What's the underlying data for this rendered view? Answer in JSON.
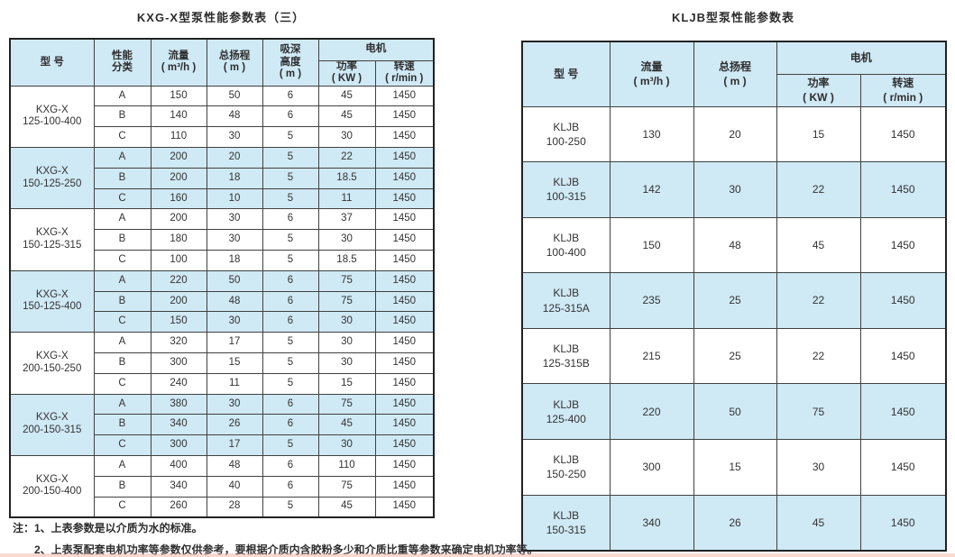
{
  "colors": {
    "header_bg": "#cfe9f5",
    "alt_row_bg": "#cfe9f5",
    "border": "#414141",
    "text": "#333333"
  },
  "left_table": {
    "title": "KXG-X型泵性能参数表（三）",
    "header": {
      "model": [
        "型  号"
      ],
      "perf_class": [
        "性能",
        "分类"
      ],
      "flow": [
        "流量",
        "( m³/h )"
      ],
      "head": [
        "总扬程",
        "( m )"
      ],
      "suction": [
        "吸深",
        "高度",
        "( m )"
      ],
      "motor": [
        "电机"
      ],
      "power": [
        "功率",
        "( KW )"
      ],
      "speed": [
        "转速",
        "( r/min )"
      ]
    },
    "groups": [
      {
        "model": [
          "KXG-X",
          "125-100-400"
        ],
        "rows": [
          {
            "class": "A",
            "flow": "150",
            "head": "50",
            "suction": "6",
            "power": "45",
            "speed": "1450"
          },
          {
            "class": "B",
            "flow": "140",
            "head": "48",
            "suction": "6",
            "power": "45",
            "speed": "1450"
          },
          {
            "class": "C",
            "flow": "110",
            "head": "30",
            "suction": "5",
            "power": "30",
            "speed": "1450"
          }
        ]
      },
      {
        "model": [
          "KXG-X",
          "150-125-250"
        ],
        "rows": [
          {
            "class": "A",
            "flow": "200",
            "head": "20",
            "suction": "5",
            "power": "22",
            "speed": "1450"
          },
          {
            "class": "B",
            "flow": "200",
            "head": "18",
            "suction": "5",
            "power": "18.5",
            "speed": "1450"
          },
          {
            "class": "C",
            "flow": "160",
            "head": "10",
            "suction": "5",
            "power": "11",
            "speed": "1450"
          }
        ]
      },
      {
        "model": [
          "KXG-X",
          "150-125-315"
        ],
        "rows": [
          {
            "class": "A",
            "flow": "200",
            "head": "30",
            "suction": "6",
            "power": "37",
            "speed": "1450"
          },
          {
            "class": "B",
            "flow": "180",
            "head": "30",
            "suction": "5",
            "power": "30",
            "speed": "1450"
          },
          {
            "class": "C",
            "flow": "100",
            "head": "18",
            "suction": "5",
            "power": "18.5",
            "speed": "1450"
          }
        ]
      },
      {
        "model": [
          "KXG-X",
          "150-125-400"
        ],
        "rows": [
          {
            "class": "A",
            "flow": "220",
            "head": "50",
            "suction": "6",
            "power": "75",
            "speed": "1450"
          },
          {
            "class": "B",
            "flow": "200",
            "head": "48",
            "suction": "6",
            "power": "75",
            "speed": "1450"
          },
          {
            "class": "C",
            "flow": "150",
            "head": "30",
            "suction": "6",
            "power": "30",
            "speed": "1450"
          }
        ]
      },
      {
        "model": [
          "KXG-X",
          "200-150-250"
        ],
        "rows": [
          {
            "class": "A",
            "flow": "320",
            "head": "17",
            "suction": "5",
            "power": "30",
            "speed": "1450"
          },
          {
            "class": "B",
            "flow": "300",
            "head": "15",
            "suction": "5",
            "power": "30",
            "speed": "1450"
          },
          {
            "class": "C",
            "flow": "240",
            "head": "11",
            "suction": "5",
            "power": "15",
            "speed": "1450"
          }
        ]
      },
      {
        "model": [
          "KXG-X",
          "200-150-315"
        ],
        "rows": [
          {
            "class": "A",
            "flow": "380",
            "head": "30",
            "suction": "6",
            "power": "75",
            "speed": "1450"
          },
          {
            "class": "B",
            "flow": "340",
            "head": "26",
            "suction": "6",
            "power": "45",
            "speed": "1450"
          },
          {
            "class": "C",
            "flow": "300",
            "head": "17",
            "suction": "5",
            "power": "30",
            "speed": "1450"
          }
        ]
      },
      {
        "model": [
          "KXG-X",
          "200-150-400"
        ],
        "rows": [
          {
            "class": "A",
            "flow": "400",
            "head": "48",
            "suction": "6",
            "power": "110",
            "speed": "1450"
          },
          {
            "class": "B",
            "flow": "340",
            "head": "40",
            "suction": "6",
            "power": "75",
            "speed": "1450"
          },
          {
            "class": "C",
            "flow": "260",
            "head": "28",
            "suction": "5",
            "power": "45",
            "speed": "1450"
          }
        ]
      }
    ]
  },
  "right_table": {
    "title": "KLJB型泵性能参数表",
    "header": {
      "model": [
        "型  号"
      ],
      "flow": [
        "流量",
        "( m³/h )"
      ],
      "head": [
        "总扬程",
        "( m )"
      ],
      "motor": [
        "电机"
      ],
      "power": [
        "功率",
        "( KW )"
      ],
      "speed": [
        "转速",
        "( r/min )"
      ]
    },
    "rows": [
      {
        "model": [
          "KLJB",
          "100-250"
        ],
        "flow": "130",
        "head": "20",
        "power": "15",
        "speed": "1450"
      },
      {
        "model": [
          "KLJB",
          "100-315"
        ],
        "flow": "142",
        "head": "30",
        "power": "22",
        "speed": "1450"
      },
      {
        "model": [
          "KLJB",
          "100-400"
        ],
        "flow": "150",
        "head": "48",
        "power": "45",
        "speed": "1450"
      },
      {
        "model": [
          "KLJB",
          "125-315A"
        ],
        "flow": "235",
        "head": "25",
        "power": "22",
        "speed": "1450"
      },
      {
        "model": [
          "KLJB",
          "125-315B"
        ],
        "flow": "215",
        "head": "25",
        "power": "22",
        "speed": "1450"
      },
      {
        "model": [
          "KLJB",
          "125-400"
        ],
        "flow": "220",
        "head": "50",
        "power": "75",
        "speed": "1450"
      },
      {
        "model": [
          "KLJB",
          "150-250"
        ],
        "flow": "300",
        "head": "15",
        "power": "30",
        "speed": "1450"
      },
      {
        "model": [
          "KLJB",
          "150-315"
        ],
        "flow": "340",
        "head": "26",
        "power": "45",
        "speed": "1450"
      }
    ]
  },
  "notes": [
    "注：1、上表参数是以介质为水的标准。",
    "2、上表泵配套电机功率等参数仅供参考，要根据介质内含胶粉多少和介质比重等参数来确定电机功率等。"
  ]
}
